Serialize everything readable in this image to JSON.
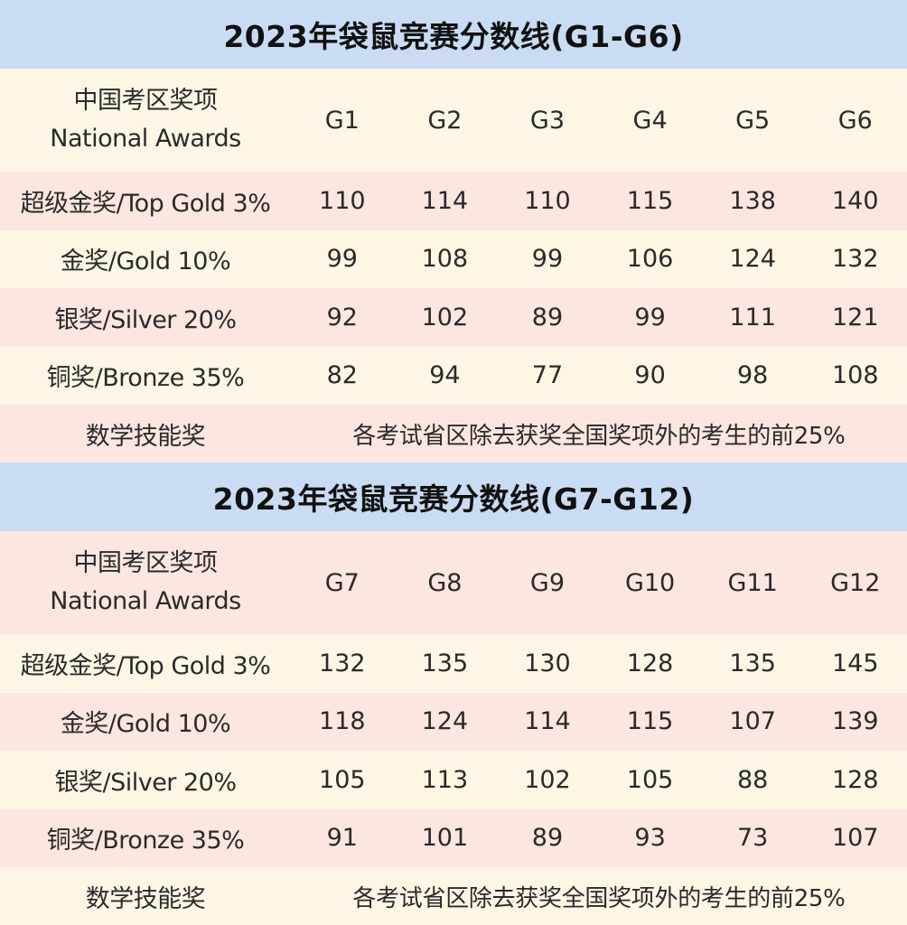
{
  "tables": [
    {
      "title": "2023年袋鼠竞赛分数线(G1-G6)",
      "header_label_line1": "中国考区奖项",
      "header_label_line2": "National Awards",
      "grades": [
        "G1",
        "G2",
        "G3",
        "G4",
        "G5",
        "G6"
      ],
      "rows": [
        {
          "label": "超级金奖/Top Gold 3%",
          "values": [
            "110",
            "114",
            "110",
            "115",
            "138",
            "140"
          ]
        },
        {
          "label": "金奖/Gold 10%",
          "values": [
            "99",
            "108",
            "99",
            "106",
            "124",
            "132"
          ]
        },
        {
          "label": "银奖/Silver 20%",
          "values": [
            "92",
            "102",
            "89",
            "99",
            "111",
            "121"
          ]
        },
        {
          "label": "铜奖/Bronze 35%",
          "values": [
            "82",
            "94",
            "77",
            "90",
            "98",
            "108"
          ]
        }
      ],
      "skill_award_label": "数学技能奖",
      "skill_award_note": "各考试省区除去获奖全国奖项外的考生的前25%"
    },
    {
      "title": "2023年袋鼠竞赛分数线(G7-G12)",
      "header_label_line1": "中国考区奖项",
      "header_label_line2": "National Awards",
      "grades": [
        "G7",
        "G8",
        "G9",
        "G10",
        "G11",
        "G12"
      ],
      "rows": [
        {
          "label": "超级金奖/Top Gold 3%",
          "values": [
            "132",
            "135",
            "130",
            "128",
            "135",
            "145"
          ]
        },
        {
          "label": "金奖/Gold 10%",
          "values": [
            "118",
            "124",
            "114",
            "115",
            "107",
            "139"
          ]
        },
        {
          "label": "银奖/Silver 20%",
          "values": [
            "105",
            "113",
            "102",
            "105",
            "88",
            "128"
          ]
        },
        {
          "label": "铜奖/Bronze 35%",
          "values": [
            "91",
            "101",
            "89",
            "93",
            "73",
            "107"
          ]
        }
      ],
      "skill_award_label": "数学技能奖",
      "skill_award_note": "各考试省区除去获奖全国奖项外的考生的前25%"
    }
  ],
  "colors": {
    "title_bg": "#c9dcf3",
    "cream_row": "#fdf6e4",
    "pink_row": "#fce6e0",
    "text": "#2a2a2a"
  }
}
